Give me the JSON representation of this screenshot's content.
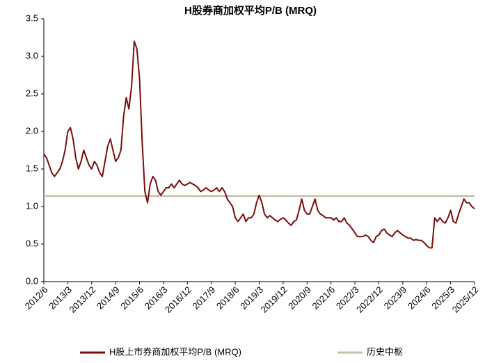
{
  "chart_data": {
    "type": "line",
    "title": "H股券商加权平均P/B (MRQ)",
    "x": [
      "2012/6",
      "2012/7",
      "2012/8",
      "2012/9",
      "2012/10",
      "2012/11",
      "2012/12",
      "2013/1",
      "2013/2",
      "2013/3",
      "2013/4",
      "2013/5",
      "2013/6",
      "2013/7",
      "2013/8",
      "2013/9",
      "2013/10",
      "2013/11",
      "2013/12",
      "2014/1",
      "2014/2",
      "2014/3",
      "2014/4",
      "2014/5",
      "2014/6",
      "2014/7",
      "2014/8",
      "2014/9",
      "2014/10",
      "2014/11",
      "2014/12",
      "2015/1",
      "2015/2",
      "2015/3",
      "2015/4",
      "2015/5",
      "2015/6",
      "2015/7",
      "2015/8",
      "2015/9",
      "2015/10",
      "2015/11",
      "2015/12",
      "2016/1",
      "2016/2",
      "2016/3",
      "2016/4",
      "2016/5",
      "2016/6",
      "2016/7",
      "2016/8",
      "2016/9",
      "2016/10",
      "2016/11",
      "2016/12",
      "2017/1",
      "2017/2",
      "2017/3",
      "2017/4",
      "2017/5",
      "2017/6",
      "2017/7",
      "2017/8",
      "2017/9",
      "2017/10",
      "2017/11",
      "2017/12",
      "2018/1",
      "2018/2",
      "2018/3",
      "2018/4",
      "2018/5",
      "2018/6",
      "2018/7",
      "2018/8",
      "2018/9",
      "2018/10",
      "2018/11",
      "2018/12",
      "2019/1",
      "2019/2",
      "2019/3",
      "2019/4",
      "2019/5",
      "2019/6",
      "2019/7",
      "2019/8",
      "2019/9",
      "2019/10",
      "2019/11",
      "2019/12",
      "2020/1",
      "2020/2",
      "2020/3",
      "2020/4",
      "2020/5",
      "2020/6",
      "2020/7",
      "2020/8",
      "2020/9",
      "2020/10",
      "2020/11",
      "2020/12",
      "2021/1",
      "2021/2",
      "2021/3",
      "2021/4",
      "2021/5",
      "2021/6",
      "2021/7",
      "2021/8",
      "2021/9",
      "2021/10",
      "2021/11",
      "2021/12",
      "2022/1",
      "2022/2",
      "2022/3",
      "2022/4",
      "2022/5",
      "2022/6",
      "2022/7",
      "2022/8",
      "2022/9",
      "2022/10",
      "2022/11",
      "2022/12",
      "2023/1",
      "2023/2",
      "2023/3",
      "2023/4",
      "2023/5",
      "2023/6",
      "2023/7",
      "2023/8",
      "2023/9",
      "2023/10",
      "2023/11",
      "2023/12",
      "2024/1",
      "2024/2",
      "2024/3",
      "2024/4",
      "2024/5",
      "2024/6",
      "2024/7",
      "2024/8",
      "2024/9",
      "2024/10",
      "2024/11",
      "2024/12",
      "2025/1",
      "2025/2",
      "2025/3",
      "2025/4",
      "2025/5",
      "2025/6",
      "2025/7",
      "2025/8",
      "2025/9",
      "2025/10",
      "2025/11",
      "2025/12"
    ],
    "series": [
      {
        "name": "H股上市券商加权平均P/B (MRQ)",
        "color": "#7b0c0c",
        "values": [
          1.7,
          1.65,
          1.55,
          1.45,
          1.4,
          1.45,
          1.5,
          1.6,
          1.75,
          2.0,
          2.05,
          1.9,
          1.65,
          1.5,
          1.6,
          1.75,
          1.65,
          1.55,
          1.5,
          1.6,
          1.55,
          1.45,
          1.4,
          1.6,
          1.8,
          1.9,
          1.75,
          1.6,
          1.65,
          1.75,
          2.2,
          2.45,
          2.3,
          2.6,
          3.2,
          3.1,
          2.7,
          1.85,
          1.2,
          1.05,
          1.3,
          1.4,
          1.35,
          1.2,
          1.15,
          1.2,
          1.25,
          1.25,
          1.3,
          1.25,
          1.3,
          1.35,
          1.3,
          1.28,
          1.3,
          1.32,
          1.3,
          1.28,
          1.25,
          1.2,
          1.22,
          1.25,
          1.22,
          1.2,
          1.22,
          1.25,
          1.2,
          1.25,
          1.2,
          1.1,
          1.05,
          1.0,
          0.85,
          0.8,
          0.85,
          0.9,
          0.8,
          0.85,
          0.85,
          0.9,
          1.05,
          1.15,
          1.05,
          0.9,
          0.85,
          0.88,
          0.85,
          0.82,
          0.8,
          0.83,
          0.85,
          0.82,
          0.78,
          0.75,
          0.8,
          0.82,
          0.95,
          1.1,
          0.95,
          0.9,
          0.9,
          1.0,
          1.1,
          0.95,
          0.9,
          0.88,
          0.85,
          0.85,
          0.85,
          0.82,
          0.85,
          0.8,
          0.8,
          0.85,
          0.78,
          0.75,
          0.7,
          0.65,
          0.6,
          0.6,
          0.6,
          0.62,
          0.6,
          0.55,
          0.52,
          0.6,
          0.62,
          0.68,
          0.7,
          0.65,
          0.62,
          0.6,
          0.65,
          0.68,
          0.65,
          0.62,
          0.6,
          0.58,
          0.58,
          0.55,
          0.56,
          0.55,
          0.55,
          0.52,
          0.48,
          0.45,
          0.45,
          0.85,
          0.8,
          0.85,
          0.8,
          0.78,
          0.85,
          0.95,
          0.8,
          0.78,
          0.9,
          1.0,
          1.1,
          1.05,
          1.05,
          1.0,
          0.97
        ]
      },
      {
        "name": "历史中枢",
        "color": "#c4bfa8",
        "values": [
          1.14,
          1.14,
          1.14,
          1.14,
          1.14,
          1.14,
          1.14,
          1.14,
          1.14,
          1.14,
          1.14,
          1.14,
          1.14,
          1.14,
          1.14,
          1.14,
          1.14,
          1.14,
          1.14,
          1.14,
          1.14,
          1.14,
          1.14,
          1.14,
          1.14,
          1.14,
          1.14,
          1.14,
          1.14,
          1.14,
          1.14,
          1.14,
          1.14,
          1.14,
          1.14,
          1.14,
          1.14,
          1.14,
          1.14,
          1.14,
          1.14,
          1.14,
          1.14,
          1.14,
          1.14,
          1.14,
          1.14,
          1.14,
          1.14,
          1.14,
          1.14,
          1.14,
          1.14,
          1.14,
          1.14,
          1.14,
          1.14,
          1.14,
          1.14,
          1.14,
          1.14,
          1.14,
          1.14,
          1.14,
          1.14,
          1.14,
          1.14,
          1.14,
          1.14,
          1.14,
          1.14,
          1.14,
          1.14,
          1.14,
          1.14,
          1.14,
          1.14,
          1.14,
          1.14,
          1.14,
          1.14,
          1.14,
          1.14,
          1.14,
          1.14,
          1.14,
          1.14,
          1.14,
          1.14,
          1.14,
          1.14,
          1.14,
          1.14,
          1.14,
          1.14,
          1.14,
          1.14,
          1.14,
          1.14,
          1.14,
          1.14,
          1.14,
          1.14,
          1.14,
          1.14,
          1.14,
          1.14,
          1.14,
          1.14,
          1.14,
          1.14,
          1.14,
          1.14,
          1.14,
          1.14,
          1.14,
          1.14,
          1.14,
          1.14,
          1.14,
          1.14,
          1.14,
          1.14,
          1.14,
          1.14,
          1.14,
          1.14,
          1.14,
          1.14,
          1.14,
          1.14,
          1.14,
          1.14,
          1.14,
          1.14,
          1.14,
          1.14,
          1.14,
          1.14,
          1.14,
          1.14,
          1.14,
          1.14,
          1.14,
          1.14,
          1.14,
          1.14,
          1.14,
          1.14,
          1.14,
          1.14,
          1.14,
          1.14,
          1.14,
          1.14,
          1.14,
          1.14,
          1.14,
          1.14,
          1.14,
          1.14,
          1.14,
          1.14
        ]
      }
    ],
    "ylim": [
      0,
      3.5
    ],
    "yticks": [
      {
        "value": 0,
        "label": "0.0"
      },
      {
        "value": 0.5,
        "label": "0.5"
      },
      {
        "value": 1,
        "label": "1.0"
      },
      {
        "value": 1.5,
        "label": "1.5"
      },
      {
        "value": 2,
        "label": "2.0"
      },
      {
        "value": 2.5,
        "label": "2.5"
      },
      {
        "value": 3,
        "label": "3.0"
      },
      {
        "value": 3.5,
        "label": "3.5"
      }
    ],
    "grid": false,
    "legend": "bottom"
  }
}
